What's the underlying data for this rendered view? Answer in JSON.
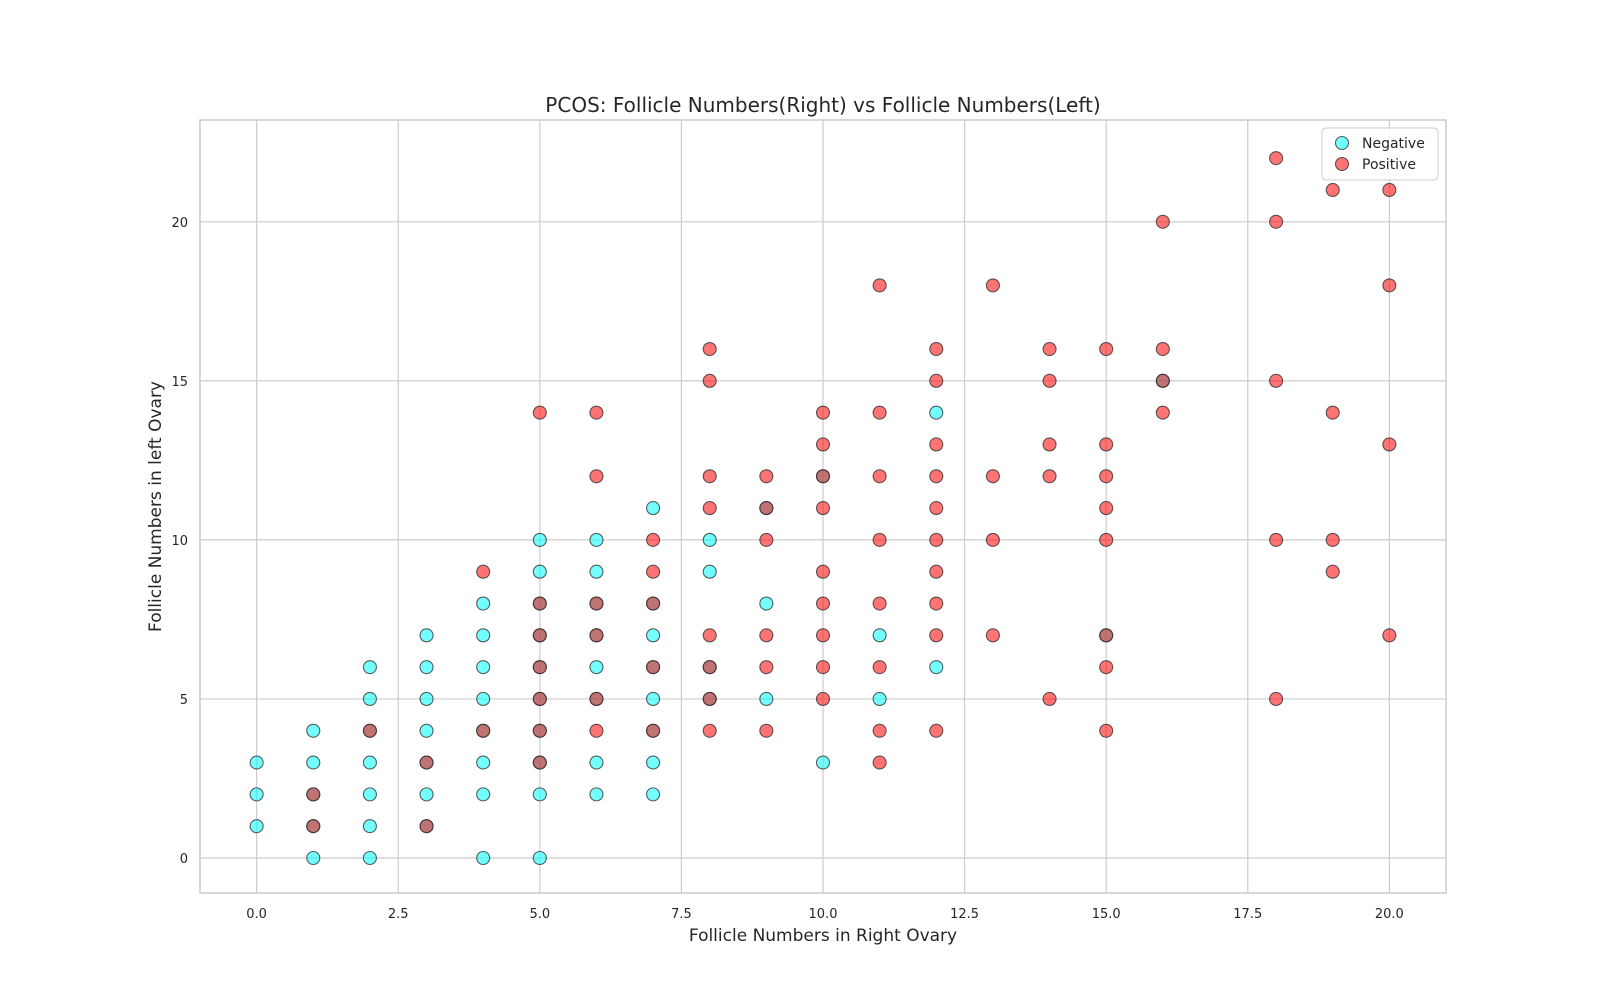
{
  "chart_data": {
    "type": "scatter",
    "title": "PCOS: Follicle Numbers(Right) vs Follicle Numbers(Left)",
    "xlabel": "Follicle Numbers in Right Ovary",
    "ylabel": "Follicle Numbers in left Ovary",
    "xlim": [
      -1,
      21
    ],
    "ylim": [
      -1.1,
      23.2
    ],
    "xticks": [
      "0.0",
      "2.5",
      "5.0",
      "7.5",
      "10.0",
      "12.5",
      "15.0",
      "17.5",
      "20.0"
    ],
    "xtick_values": [
      0,
      2.5,
      5,
      7.5,
      10,
      12.5,
      15,
      17.5,
      20
    ],
    "yticks": [
      "0",
      "5",
      "10",
      "15",
      "20"
    ],
    "ytick_values": [
      0,
      5,
      10,
      15,
      20
    ],
    "grid": true,
    "legend_position": "top-right",
    "series": [
      {
        "name": "Negative",
        "color": "#00ffff",
        "points": [
          [
            0,
            1
          ],
          [
            0,
            2
          ],
          [
            0,
            3
          ],
          [
            1,
            0
          ],
          [
            1,
            1
          ],
          [
            1,
            2
          ],
          [
            1,
            3
          ],
          [
            1,
            4
          ],
          [
            2,
            0
          ],
          [
            2,
            1
          ],
          [
            2,
            2
          ],
          [
            2,
            3
          ],
          [
            2,
            4
          ],
          [
            2,
            5
          ],
          [
            2,
            6
          ],
          [
            3,
            1
          ],
          [
            3,
            2
          ],
          [
            3,
            3
          ],
          [
            3,
            4
          ],
          [
            3,
            5
          ],
          [
            3,
            6
          ],
          [
            3,
            7
          ],
          [
            4,
            0
          ],
          [
            4,
            2
          ],
          [
            4,
            3
          ],
          [
            4,
            4
          ],
          [
            4,
            5
          ],
          [
            4,
            6
          ],
          [
            4,
            7
          ],
          [
            4,
            8
          ],
          [
            5,
            0
          ],
          [
            5,
            2
          ],
          [
            5,
            3
          ],
          [
            5,
            4
          ],
          [
            5,
            5
          ],
          [
            5,
            6
          ],
          [
            5,
            7
          ],
          [
            5,
            8
          ],
          [
            5,
            9
          ],
          [
            5,
            10
          ],
          [
            6,
            2
          ],
          [
            6,
            3
          ],
          [
            6,
            5
          ],
          [
            6,
            6
          ],
          [
            6,
            7
          ],
          [
            6,
            8
          ],
          [
            6,
            9
          ],
          [
            6,
            10
          ],
          [
            7,
            2
          ],
          [
            7,
            3
          ],
          [
            7,
            4
          ],
          [
            7,
            5
          ],
          [
            7,
            6
          ],
          [
            7,
            7
          ],
          [
            7,
            8
          ],
          [
            7,
            11
          ],
          [
            8,
            5
          ],
          [
            8,
            6
          ],
          [
            8,
            9
          ],
          [
            8,
            10
          ],
          [
            9,
            5
          ],
          [
            9,
            8
          ],
          [
            9,
            11
          ],
          [
            10,
            3
          ],
          [
            10,
            12
          ],
          [
            11,
            5
          ],
          [
            11,
            7
          ],
          [
            12,
            6
          ],
          [
            12,
            14
          ],
          [
            15,
            7
          ],
          [
            16,
            15
          ]
        ]
      },
      {
        "name": "Positive",
        "color": "#ff0000",
        "points": [
          [
            1,
            1
          ],
          [
            1,
            2
          ],
          [
            2,
            4
          ],
          [
            3,
            1
          ],
          [
            3,
            3
          ],
          [
            4,
            4
          ],
          [
            4,
            9
          ],
          [
            5,
            3
          ],
          [
            5,
            4
          ],
          [
            5,
            5
          ],
          [
            5,
            6
          ],
          [
            5,
            7
          ],
          [
            5,
            8
          ],
          [
            5,
            14
          ],
          [
            6,
            4
          ],
          [
            6,
            5
          ],
          [
            6,
            7
          ],
          [
            6,
            8
          ],
          [
            6,
            12
          ],
          [
            6,
            14
          ],
          [
            7,
            4
          ],
          [
            7,
            6
          ],
          [
            7,
            8
          ],
          [
            7,
            9
          ],
          [
            7,
            10
          ],
          [
            8,
            4
          ],
          [
            8,
            5
          ],
          [
            8,
            6
          ],
          [
            8,
            7
          ],
          [
            8,
            11
          ],
          [
            8,
            12
          ],
          [
            8,
            15
          ],
          [
            8,
            16
          ],
          [
            9,
            4
          ],
          [
            9,
            6
          ],
          [
            9,
            7
          ],
          [
            9,
            10
          ],
          [
            9,
            11
          ],
          [
            9,
            12
          ],
          [
            10,
            5
          ],
          [
            10,
            6
          ],
          [
            10,
            7
          ],
          [
            10,
            8
          ],
          [
            10,
            9
          ],
          [
            10,
            11
          ],
          [
            10,
            12
          ],
          [
            10,
            13
          ],
          [
            10,
            14
          ],
          [
            11,
            3
          ],
          [
            11,
            4
          ],
          [
            11,
            6
          ],
          [
            11,
            8
          ],
          [
            11,
            10
          ],
          [
            11,
            12
          ],
          [
            11,
            14
          ],
          [
            11,
            18
          ],
          [
            12,
            4
          ],
          [
            12,
            7
          ],
          [
            12,
            8
          ],
          [
            12,
            9
          ],
          [
            12,
            10
          ],
          [
            12,
            11
          ],
          [
            12,
            12
          ],
          [
            12,
            13
          ],
          [
            12,
            15
          ],
          [
            12,
            16
          ],
          [
            13,
            7
          ],
          [
            13,
            10
          ],
          [
            13,
            12
          ],
          [
            13,
            18
          ],
          [
            14,
            5
          ],
          [
            14,
            12
          ],
          [
            14,
            13
          ],
          [
            14,
            15
          ],
          [
            14,
            16
          ],
          [
            15,
            4
          ],
          [
            15,
            6
          ],
          [
            15,
            7
          ],
          [
            15,
            10
          ],
          [
            15,
            11
          ],
          [
            15,
            12
          ],
          [
            15,
            13
          ],
          [
            15,
            16
          ],
          [
            16,
            14
          ],
          [
            16,
            15
          ],
          [
            16,
            16
          ],
          [
            16,
            20
          ],
          [
            18,
            5
          ],
          [
            18,
            10
          ],
          [
            18,
            15
          ],
          [
            18,
            20
          ],
          [
            18,
            22
          ],
          [
            19,
            9
          ],
          [
            19,
            10
          ],
          [
            19,
            14
          ],
          [
            19,
            21
          ],
          [
            20,
            7
          ],
          [
            20,
            13
          ],
          [
            20,
            18
          ],
          [
            20,
            21
          ]
        ]
      }
    ]
  }
}
